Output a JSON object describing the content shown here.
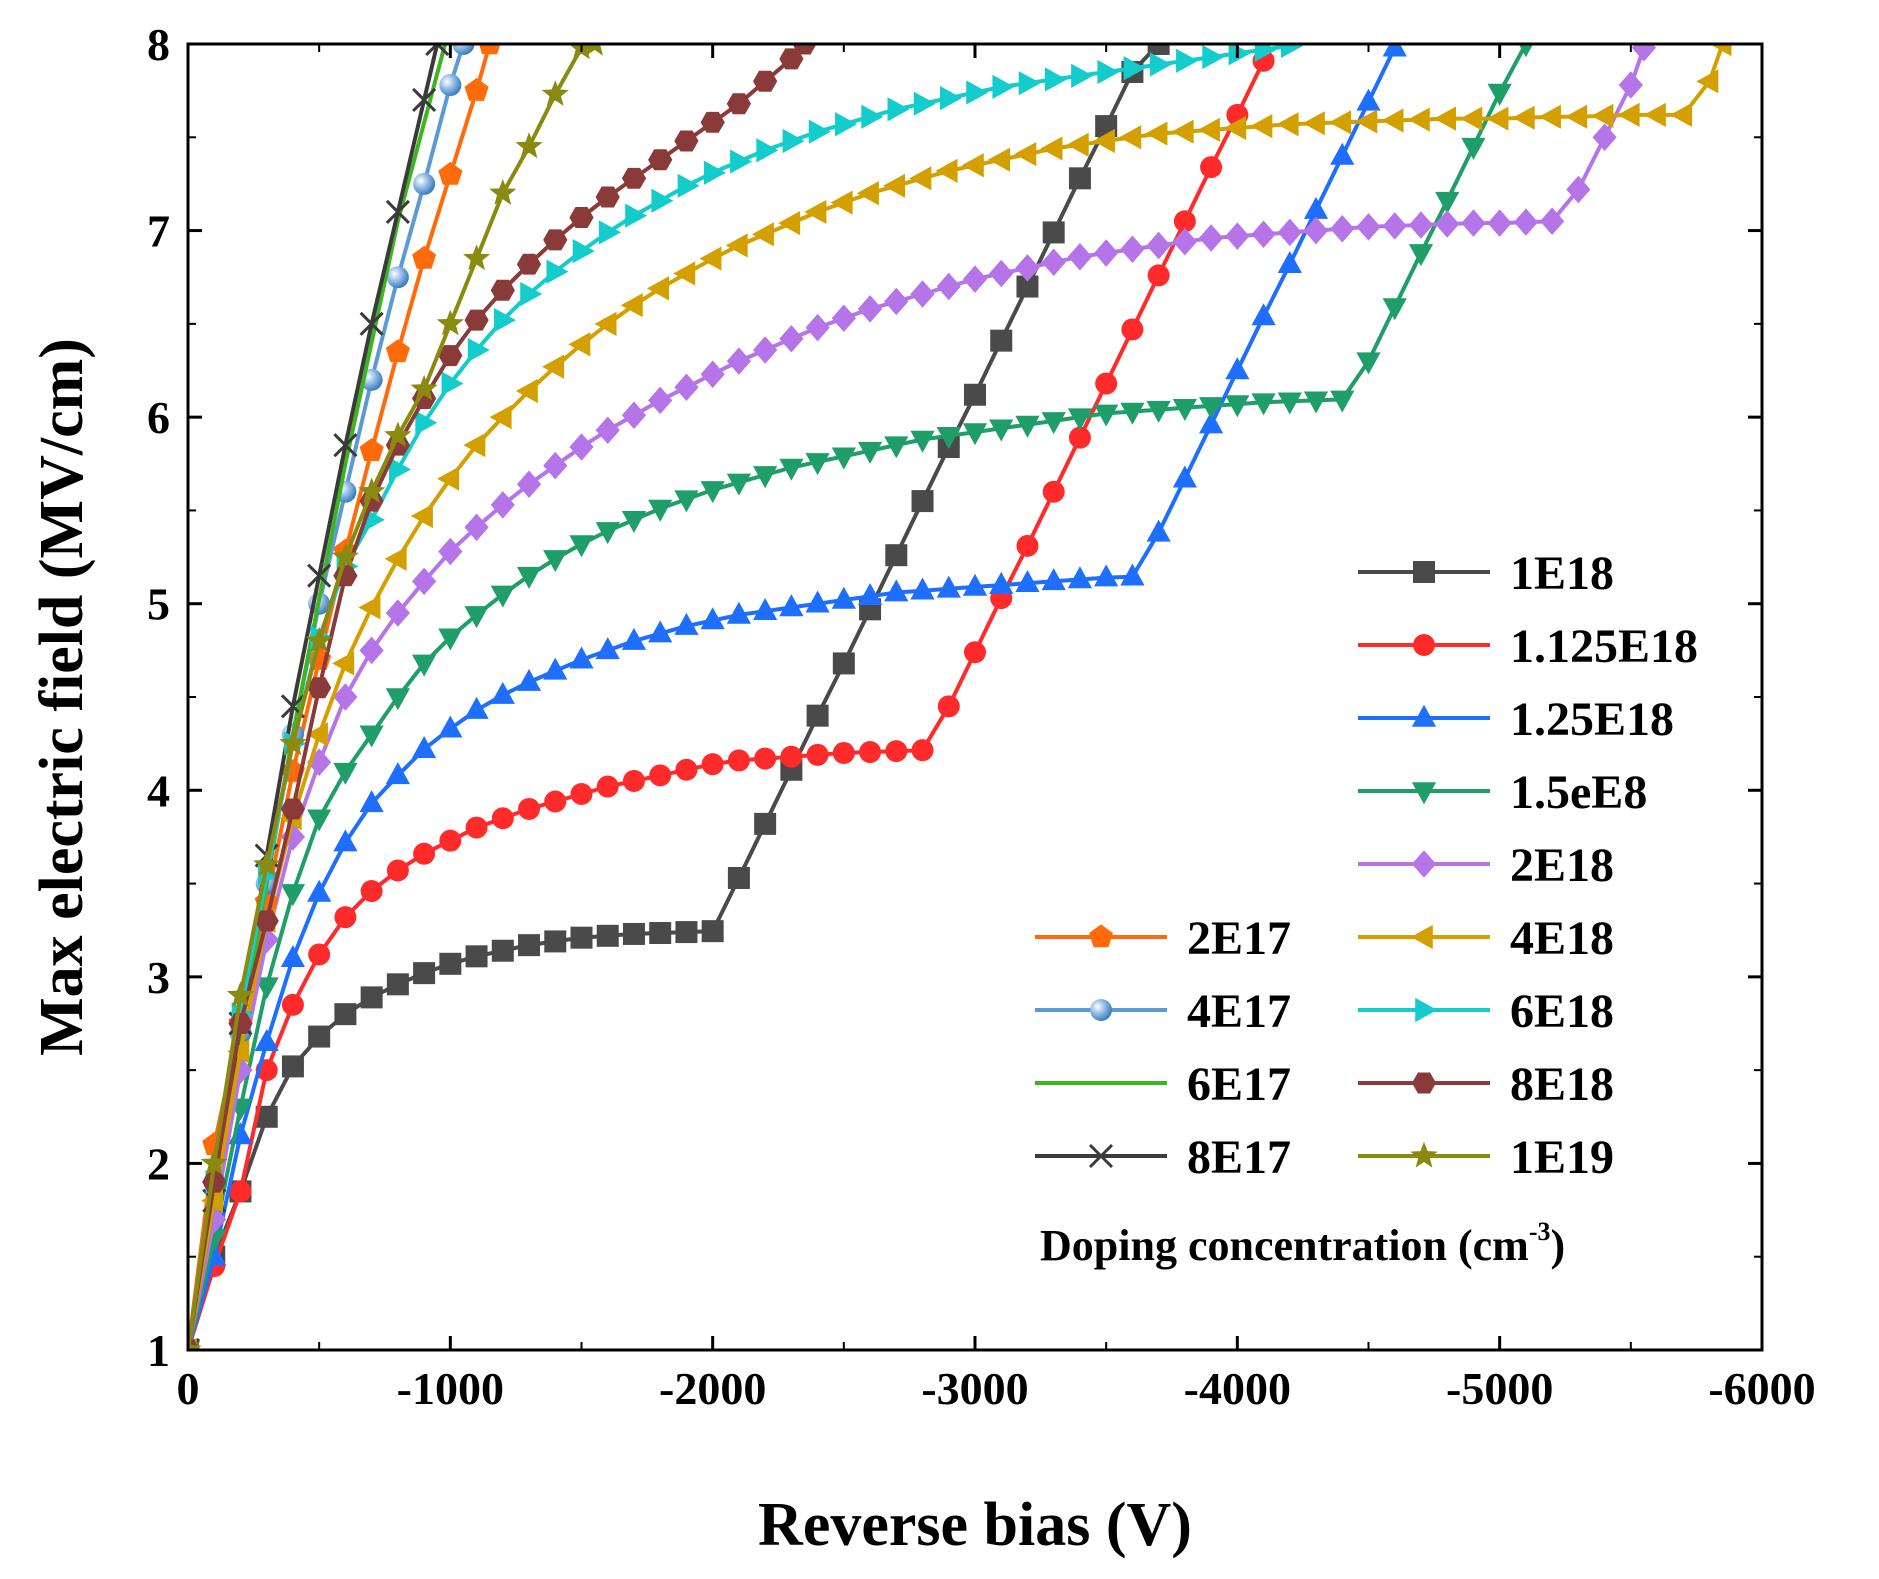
{
  "chart_data": {
    "type": "line",
    "title": "",
    "xlabel": "Reverse bias (V)",
    "ylabel": "Max electric field (MV/cm)",
    "xlim": [
      0,
      -6000
    ],
    "ylim": [
      1,
      8
    ],
    "x_ticks": [
      0,
      -1000,
      -2000,
      -3000,
      -4000,
      -5000,
      -6000
    ],
    "x_tick_labels": [
      "0",
      "-1000",
      "-2000",
      "-3000",
      "-4000",
      "-5000",
      "-6000"
    ],
    "y_ticks": [
      1,
      2,
      3,
      4,
      5,
      6,
      7,
      8
    ],
    "y_tick_labels": [
      "1",
      "2",
      "3",
      "4",
      "5",
      "6",
      "7",
      "8"
    ],
    "legend": {
      "title_prefix": "Doping concentration (cm",
      "title_exponent": "-3",
      "title_suffix": ")",
      "placement": "bottom-right"
    },
    "series": [
      {
        "name": "1E18",
        "color": "#4a4a4a",
        "marker": "square",
        "x": [
          0,
          -100,
          -200,
          -300,
          -400,
          -500,
          -600,
          -700,
          -800,
          -900,
          -1000,
          -1100,
          -1200,
          -1300,
          -1400,
          -1500,
          -1600,
          -1700,
          -1800,
          -1900,
          -2000,
          -2100,
          -2200,
          -2300,
          -2400,
          -2500,
          -2600,
          -2700,
          -2800,
          -2900,
          -3000,
          -3100,
          -3200,
          -3300,
          -3400,
          -3500,
          -3600,
          -3700
        ],
        "y": [
          1.0,
          1.5,
          1.85,
          2.25,
          2.52,
          2.68,
          2.8,
          2.89,
          2.96,
          3.02,
          3.07,
          3.11,
          3.14,
          3.17,
          3.19,
          3.21,
          3.22,
          3.23,
          3.235,
          3.24,
          3.245,
          3.53,
          3.82,
          4.11,
          4.4,
          4.68,
          4.97,
          5.26,
          5.55,
          5.84,
          6.12,
          6.41,
          6.7,
          6.99,
          7.28,
          7.56,
          7.85,
          8.0
        ]
      },
      {
        "name": "1.125E18",
        "color": "#ff2a2a",
        "marker": "circle",
        "x": [
          0,
          -100,
          -200,
          -300,
          -400,
          -500,
          -600,
          -700,
          -800,
          -900,
          -1000,
          -1100,
          -1200,
          -1300,
          -1400,
          -1500,
          -1600,
          -1700,
          -1800,
          -1900,
          -2000,
          -2100,
          -2200,
          -2300,
          -2400,
          -2500,
          -2600,
          -2700,
          -2800,
          -2900,
          -3000,
          -3100,
          -3200,
          -3300,
          -3400,
          -3500,
          -3600,
          -3700,
          -3800,
          -3900,
          -4000,
          -4100
        ],
        "y": [
          1.0,
          1.45,
          1.85,
          2.5,
          2.85,
          3.12,
          3.32,
          3.46,
          3.57,
          3.66,
          3.73,
          3.8,
          3.85,
          3.9,
          3.94,
          3.98,
          4.02,
          4.05,
          4.08,
          4.11,
          4.14,
          4.16,
          4.17,
          4.18,
          4.19,
          4.2,
          4.205,
          4.21,
          4.215,
          4.45,
          4.74,
          5.03,
          5.31,
          5.6,
          5.89,
          6.18,
          6.47,
          6.76,
          7.05,
          7.34,
          7.62,
          7.91
        ]
      },
      {
        "name": "1.25E18",
        "color": "#1e6fff",
        "marker": "triangle-up",
        "x": [
          0,
          -100,
          -200,
          -300,
          -400,
          -500,
          -600,
          -700,
          -800,
          -900,
          -1000,
          -1100,
          -1200,
          -1300,
          -1400,
          -1500,
          -1600,
          -1700,
          -1800,
          -1900,
          -2000,
          -2100,
          -2200,
          -2300,
          -2400,
          -2500,
          -2600,
          -2700,
          -2800,
          -2900,
          -3000,
          -3100,
          -3200,
          -3300,
          -3400,
          -3500,
          -3600,
          -3700,
          -3800,
          -3900,
          -4000,
          -4100,
          -4200,
          -4300,
          -4400,
          -4500,
          -4600
        ],
        "y": [
          1.0,
          1.5,
          2.15,
          2.65,
          3.1,
          3.45,
          3.72,
          3.93,
          4.08,
          4.22,
          4.33,
          4.43,
          4.51,
          4.58,
          4.64,
          4.7,
          4.75,
          4.8,
          4.84,
          4.88,
          4.91,
          4.94,
          4.96,
          4.98,
          5.0,
          5.02,
          5.04,
          5.06,
          5.07,
          5.08,
          5.09,
          5.1,
          5.11,
          5.12,
          5.13,
          5.14,
          5.145,
          5.38,
          5.67,
          5.96,
          6.25,
          6.54,
          6.82,
          7.11,
          7.4,
          7.69,
          7.98
        ]
      },
      {
        "name": "1.5eE8",
        "color": "#1f9e6a",
        "marker": "triangle-down",
        "x": [
          0,
          -100,
          -200,
          -300,
          -400,
          -500,
          -600,
          -700,
          -800,
          -900,
          -1000,
          -1100,
          -1200,
          -1300,
          -1400,
          -1500,
          -1600,
          -1700,
          -1800,
          -1900,
          -2000,
          -2100,
          -2200,
          -2300,
          -2400,
          -2500,
          -2600,
          -2700,
          -2800,
          -2900,
          -3000,
          -3100,
          -3200,
          -3300,
          -3400,
          -3500,
          -3600,
          -3700,
          -3800,
          -3900,
          -4000,
          -4100,
          -4200,
          -4300,
          -4400,
          -4500,
          -4600,
          -4700,
          -4800,
          -4900,
          -5000,
          -5100
        ],
        "y": [
          1.0,
          1.6,
          2.3,
          2.95,
          3.45,
          3.85,
          4.1,
          4.3,
          4.5,
          4.68,
          4.82,
          4.94,
          5.05,
          5.15,
          5.24,
          5.32,
          5.39,
          5.45,
          5.51,
          5.56,
          5.61,
          5.65,
          5.69,
          5.73,
          5.76,
          5.79,
          5.82,
          5.85,
          5.88,
          5.9,
          5.92,
          5.94,
          5.96,
          5.98,
          6.0,
          6.02,
          6.03,
          6.04,
          6.05,
          6.06,
          6.07,
          6.08,
          6.085,
          6.09,
          6.095,
          6.3,
          6.59,
          6.88,
          7.16,
          7.45,
          7.74,
          8.0
        ]
      },
      {
        "name": "2E18",
        "color": "#b574e8",
        "marker": "diamond",
        "x": [
          0,
          -100,
          -200,
          -300,
          -400,
          -500,
          -600,
          -700,
          -800,
          -900,
          -1000,
          -1100,
          -1200,
          -1300,
          -1400,
          -1500,
          -1600,
          -1700,
          -1800,
          -1900,
          -2000,
          -2100,
          -2200,
          -2300,
          -2400,
          -2500,
          -2600,
          -2700,
          -2800,
          -2900,
          -3000,
          -3100,
          -3200,
          -3300,
          -3400,
          -3500,
          -3600,
          -3700,
          -3800,
          -3900,
          -4000,
          -4100,
          -4200,
          -4300,
          -4400,
          -4500,
          -4600,
          -4700,
          -4800,
          -4900,
          -5000,
          -5100,
          -5200,
          -5300,
          -5400,
          -5500,
          -5550
        ],
        "y": [
          1.0,
          1.7,
          2.5,
          3.2,
          3.75,
          4.15,
          4.5,
          4.75,
          4.95,
          5.12,
          5.28,
          5.41,
          5.53,
          5.64,
          5.74,
          5.84,
          5.93,
          6.01,
          6.09,
          6.16,
          6.23,
          6.3,
          6.36,
          6.42,
          6.48,
          6.53,
          6.58,
          6.62,
          6.66,
          6.7,
          6.74,
          6.77,
          6.8,
          6.83,
          6.86,
          6.88,
          6.9,
          6.92,
          6.94,
          6.96,
          6.97,
          6.98,
          6.99,
          7.0,
          7.01,
          7.02,
          7.025,
          7.03,
          7.035,
          7.04,
          7.04,
          7.045,
          7.05,
          7.22,
          7.5,
          7.78,
          7.98
        ]
      },
      {
        "name": "2E17",
        "color": "#ff6a0a",
        "marker": "pentagon",
        "x": [
          0,
          -100,
          -200,
          -300,
          -400,
          -500,
          -600,
          -700,
          -800,
          -900,
          -1000,
          -1100,
          -1150
        ],
        "y": [
          1.0,
          2.1,
          2.75,
          3.4,
          4.1,
          4.7,
          5.28,
          5.82,
          6.35,
          6.85,
          7.3,
          7.75,
          8.0
        ]
      },
      {
        "name": "4E17",
        "color": "#5b9bd5",
        "marker": "sphere",
        "x": [
          0,
          -100,
          -200,
          -300,
          -400,
          -500,
          -600,
          -700,
          -800,
          -900,
          -1000,
          -1050
        ],
        "y": [
          1.0,
          1.9,
          2.7,
          3.5,
          4.3,
          5.0,
          5.6,
          6.2,
          6.75,
          7.25,
          7.78,
          8.0
        ]
      },
      {
        "name": "6E17",
        "color": "#3cb521",
        "marker": "none",
        "x": [
          0,
          -200,
          -400,
          -600,
          -800,
          -980
        ],
        "y": [
          1.0,
          2.7,
          4.3,
          5.75,
          7.05,
          8.0
        ]
      },
      {
        "name": "8E17",
        "color": "#3a3a3a",
        "marker": "x",
        "x": [
          0,
          -100,
          -200,
          -300,
          -400,
          -500,
          -600,
          -700,
          -800,
          -900,
          -950
        ],
        "y": [
          1.0,
          1.8,
          2.75,
          3.65,
          4.45,
          5.15,
          5.85,
          6.5,
          7.1,
          7.7,
          8.0
        ]
      },
      {
        "name": "4E18",
        "color": "#d4a000",
        "marker": "triangle-left",
        "x": [
          0,
          -100,
          -200,
          -300,
          -400,
          -500,
          -600,
          -700,
          -800,
          -900,
          -1000,
          -1100,
          -1200,
          -1300,
          -1400,
          -1500,
          -1600,
          -1700,
          -1800,
          -1900,
          -2000,
          -2100,
          -2200,
          -2300,
          -2400,
          -2500,
          -2600,
          -2700,
          -2800,
          -2900,
          -3000,
          -3100,
          -3200,
          -3300,
          -3400,
          -3500,
          -3600,
          -3700,
          -3800,
          -3900,
          -4000,
          -4100,
          -4200,
          -4300,
          -4400,
          -4500,
          -4600,
          -4700,
          -4800,
          -4900,
          -5000,
          -5100,
          -5200,
          -5300,
          -5400,
          -5500,
          -5600,
          -5700,
          -5800,
          -5850
        ],
        "y": [
          1.0,
          1.8,
          2.6,
          3.3,
          3.85,
          4.3,
          4.68,
          4.98,
          5.24,
          5.47,
          5.67,
          5.85,
          6.0,
          6.14,
          6.27,
          6.39,
          6.5,
          6.6,
          6.69,
          6.77,
          6.85,
          6.92,
          6.98,
          7.04,
          7.1,
          7.15,
          7.2,
          7.24,
          7.28,
          7.32,
          7.35,
          7.38,
          7.41,
          7.44,
          7.46,
          7.48,
          7.5,
          7.52,
          7.53,
          7.54,
          7.55,
          7.56,
          7.57,
          7.575,
          7.58,
          7.585,
          7.59,
          7.595,
          7.6,
          7.6,
          7.6,
          7.605,
          7.61,
          7.61,
          7.615,
          7.62,
          7.62,
          7.62,
          7.8,
          8.0
        ]
      },
      {
        "name": "6E18",
        "color": "#14cccc",
        "marker": "triangle-right",
        "x": [
          0,
          -100,
          -200,
          -300,
          -400,
          -500,
          -600,
          -700,
          -800,
          -900,
          -1000,
          -1100,
          -1200,
          -1300,
          -1400,
          -1500,
          -1600,
          -1700,
          -1800,
          -1900,
          -2000,
          -2100,
          -2200,
          -2300,
          -2400,
          -2500,
          -2600,
          -2700,
          -2800,
          -2900,
          -3000,
          -3100,
          -3200,
          -3300,
          -3400,
          -3500,
          -3600,
          -3700,
          -3800,
          -3900,
          -4000,
          -4100,
          -4200
        ],
        "y": [
          1.0,
          1.9,
          2.8,
          3.55,
          4.25,
          4.82,
          5.2,
          5.45,
          5.72,
          5.97,
          6.18,
          6.36,
          6.52,
          6.66,
          6.78,
          6.89,
          6.99,
          7.08,
          7.16,
          7.24,
          7.31,
          7.37,
          7.43,
          7.48,
          7.53,
          7.57,
          7.61,
          7.65,
          7.68,
          7.71,
          7.74,
          7.77,
          7.79,
          7.81,
          7.83,
          7.85,
          7.87,
          7.89,
          7.91,
          7.93,
          7.95,
          7.97,
          7.99
        ]
      },
      {
        "name": "8E18",
        "color": "#8b3a3a",
        "marker": "hexagon",
        "x": [
          0,
          -100,
          -200,
          -300,
          -400,
          -500,
          -600,
          -700,
          -800,
          -900,
          -1000,
          -1100,
          -1200,
          -1300,
          -1400,
          -1500,
          -1600,
          -1700,
          -1800,
          -1900,
          -2000,
          -2100,
          -2200,
          -2300,
          -2350
        ],
        "y": [
          1.0,
          1.9,
          2.75,
          3.3,
          3.9,
          4.55,
          5.15,
          5.55,
          5.85,
          6.1,
          6.33,
          6.52,
          6.68,
          6.82,
          6.95,
          7.07,
          7.18,
          7.28,
          7.38,
          7.48,
          7.58,
          7.68,
          7.8,
          7.92,
          8.0
        ]
      },
      {
        "name": "1E19",
        "color": "#8a8a10",
        "marker": "star",
        "x": [
          0,
          -100,
          -200,
          -300,
          -400,
          -500,
          -600,
          -700,
          -800,
          -900,
          -1000,
          -1100,
          -1200,
          -1300,
          -1400,
          -1500,
          -1550
        ],
        "y": [
          1.0,
          2.0,
          2.9,
          3.6,
          4.25,
          4.8,
          5.25,
          5.6,
          5.9,
          6.15,
          6.5,
          6.85,
          7.2,
          7.45,
          7.73,
          7.98,
          8.0
        ]
      }
    ],
    "legend_layout": {
      "right_column": [
        "1E18",
        "1.125E18",
        "1.25E18",
        "1.5eE8",
        "2E18",
        "4E18",
        "6E18",
        "8E18",
        "1E19"
      ],
      "left_column": [
        "2E17",
        "4E17",
        "6E17",
        "8E17"
      ]
    }
  }
}
